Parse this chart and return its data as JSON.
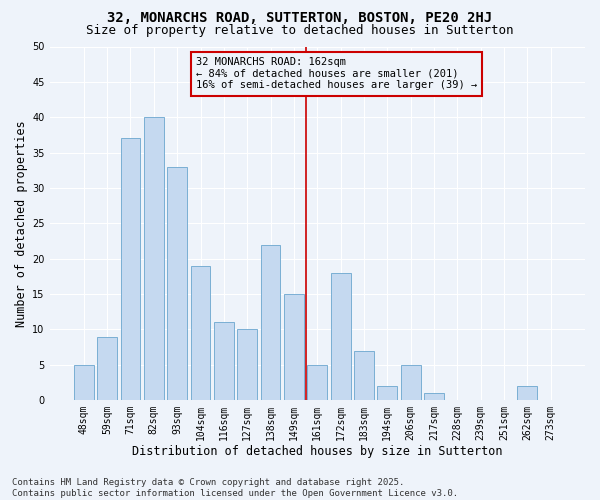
{
  "title": "32, MONARCHS ROAD, SUTTERTON, BOSTON, PE20 2HJ",
  "subtitle": "Size of property relative to detached houses in Sutterton",
  "xlabel": "Distribution of detached houses by size in Sutterton",
  "ylabel": "Number of detached properties",
  "categories": [
    "48sqm",
    "59sqm",
    "71sqm",
    "82sqm",
    "93sqm",
    "104sqm",
    "116sqm",
    "127sqm",
    "138sqm",
    "149sqm",
    "161sqm",
    "172sqm",
    "183sqm",
    "194sqm",
    "206sqm",
    "217sqm",
    "228sqm",
    "239sqm",
    "251sqm",
    "262sqm",
    "273sqm"
  ],
  "values": [
    5,
    9,
    37,
    40,
    33,
    19,
    11,
    10,
    22,
    15,
    5,
    18,
    7,
    2,
    5,
    1,
    0,
    0,
    0,
    2,
    0
  ],
  "bar_color": "#c5d9f0",
  "bar_edge_color": "#7aafd4",
  "bar_width": 0.85,
  "vline_index": 10,
  "vline_color": "#cc0000",
  "annotation_text": "32 MONARCHS ROAD: 162sqm\n← 84% of detached houses are smaller (201)\n16% of semi-detached houses are larger (39) →",
  "annotation_box_color": "#cc0000",
  "annotation_bg": "#eef3fa",
  "ylim": [
    0,
    50
  ],
  "yticks": [
    0,
    5,
    10,
    15,
    20,
    25,
    30,
    35,
    40,
    45,
    50
  ],
  "footer": "Contains HM Land Registry data © Crown copyright and database right 2025.\nContains public sector information licensed under the Open Government Licence v3.0.",
  "bg_color": "#eef3fa",
  "grid_color": "#ffffff",
  "title_fontsize": 10,
  "subtitle_fontsize": 9,
  "axis_label_fontsize": 8.5,
  "tick_fontsize": 7,
  "annotation_fontsize": 7.5,
  "footer_fontsize": 6.5
}
